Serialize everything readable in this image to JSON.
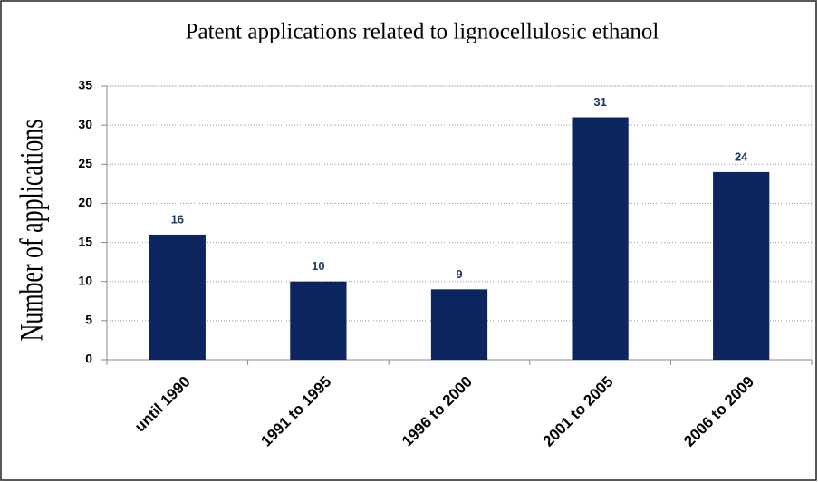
{
  "chart_data": {
    "type": "bar",
    "title": "Patent applications related to lignocellulosic ethanol",
    "y_label": "Number of applications",
    "categories": [
      "until 1990",
      "1991 to 1995",
      "1996 to 2000",
      "2001 to 2005",
      "2006 to 2009"
    ],
    "values": [
      16,
      10,
      9,
      31,
      24
    ],
    "color": "#0c2460",
    "ylim": [
      0,
      35
    ],
    "yticks": [
      0,
      5,
      10,
      15,
      20,
      25,
      30,
      35
    ],
    "grid": true
  }
}
